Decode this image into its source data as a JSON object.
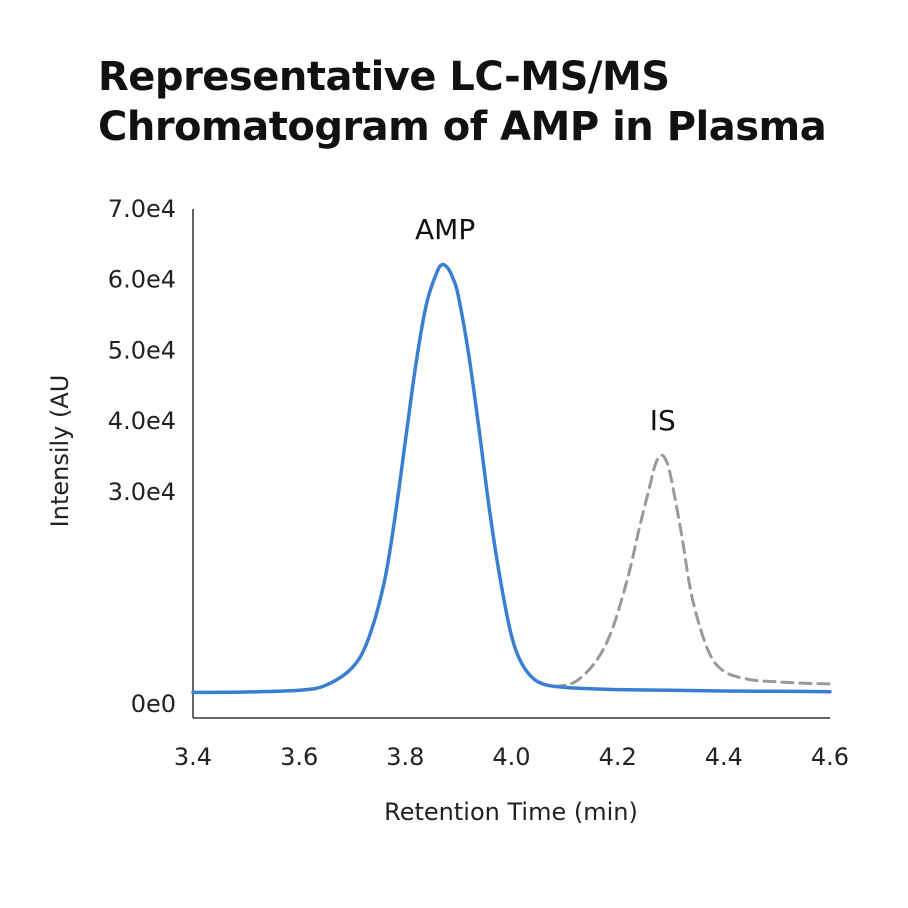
{
  "chart_data": {
    "type": "line",
    "title_lines": [
      "Representative LC-MS/MS",
      "Chromatogram of AMP in Plasma"
    ],
    "xlabel": "Retention Time (min)",
    "ylabel": "Intensily (AU",
    "xlim": [
      3.4,
      4.6
    ],
    "ylim": [
      0,
      70000
    ],
    "x_ticks": [
      3.4,
      3.6,
      3.8,
      4.0,
      4.2,
      4.4,
      4.6
    ],
    "x_tick_labels": [
      "3.4",
      "3.6",
      "3.8",
      "4.0",
      "4.2",
      "4.4",
      "4.6"
    ],
    "y_ticks": [
      0,
      30000,
      40000,
      50000,
      60000,
      70000
    ],
    "y_tick_labels": [
      "0e0",
      "3.0e4",
      "4.0e4",
      "5.0e4",
      "6.0e4",
      "7.0e4"
    ],
    "grid": false,
    "legend": "none",
    "series": [
      {
        "name": "AMP",
        "color": "#3a7fd0",
        "style": "solid",
        "x": [
          3.4,
          3.5,
          3.6,
          3.65,
          3.7,
          3.73,
          3.76,
          3.78,
          3.8,
          3.82,
          3.84,
          3.86,
          3.87,
          3.88,
          3.89,
          3.9,
          3.92,
          3.94,
          3.96,
          3.98,
          4.0,
          4.02,
          4.05,
          4.1,
          4.2,
          4.3,
          4.4,
          4.5,
          4.6
        ],
        "values": [
          1500,
          1550,
          1800,
          2500,
          5000,
          9000,
          17000,
          26000,
          37000,
          48000,
          56500,
          61000,
          62000,
          61500,
          60000,
          57500,
          49000,
          38000,
          26500,
          17000,
          9500,
          5500,
          3000,
          2200,
          1900,
          1800,
          1700,
          1650,
          1600
        ]
      },
      {
        "name": "IS",
        "color": "#999999",
        "style": "dashed",
        "x": [
          4.08,
          4.12,
          4.16,
          4.19,
          4.22,
          4.24,
          4.26,
          4.27,
          4.28,
          4.29,
          4.3,
          4.32,
          4.34,
          4.37,
          4.4,
          4.45,
          4.5,
          4.55,
          4.6
        ],
        "values": [
          2300,
          3000,
          6000,
          10500,
          18000,
          24500,
          30500,
          33500,
          35000,
          34500,
          32000,
          24000,
          15000,
          7500,
          4500,
          3300,
          3000,
          2800,
          2700
        ]
      }
    ],
    "annotations": [
      {
        "text": "AMP",
        "x": 3.875,
        "y": 67000
      },
      {
        "text": "IS",
        "x": 4.285,
        "y": 40000
      }
    ]
  }
}
